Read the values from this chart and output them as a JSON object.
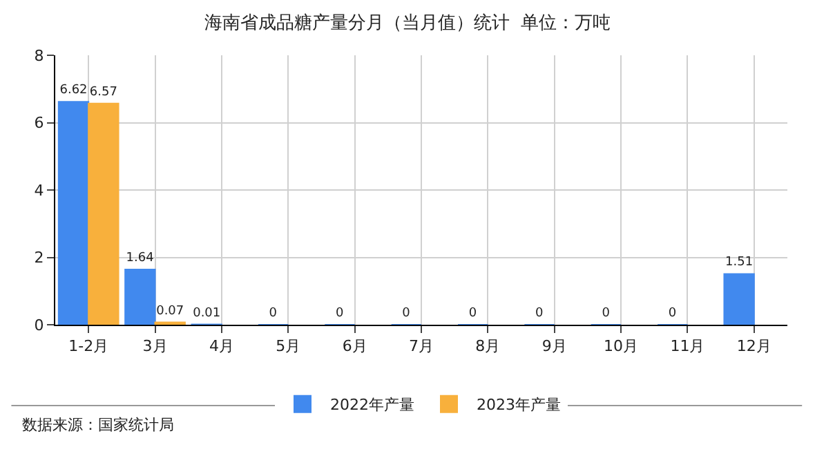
{
  "chart_data": {
    "type": "bar",
    "title": "海南省成品糖产量分月（当月值）统计  单位：万吨",
    "categories": [
      "1-2月",
      "3月",
      "4月",
      "5月",
      "6月",
      "7月",
      "8月",
      "9月",
      "10月",
      "11月",
      "12月"
    ],
    "series": [
      {
        "name": "2022年产量",
        "color": "#4189ee",
        "values": [
          6.62,
          1.64,
          0.01,
          0,
          0,
          0,
          0,
          0,
          0,
          0,
          1.51
        ]
      },
      {
        "name": "2023年产量",
        "color": "#f8b03c",
        "values": [
          6.57,
          0.07,
          null,
          null,
          null,
          null,
          null,
          null,
          null,
          null,
          null
        ]
      }
    ],
    "ylim": [
      0,
      8
    ],
    "yticks": [
      0,
      2,
      4,
      6,
      8
    ],
    "grid": true,
    "legend": "bottom",
    "data_labels": true,
    "annotations": [
      "数据来源：国家统计局"
    ]
  }
}
